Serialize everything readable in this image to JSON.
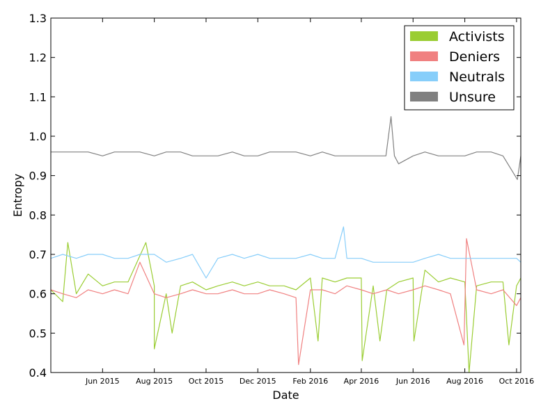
{
  "chart_data": {
    "type": "line",
    "xlabel": "Date",
    "ylabel": "Entropy",
    "x_range": [
      "2015-04-01",
      "2016-10-06"
    ],
    "ylim": [
      0.4,
      1.3
    ],
    "yticks": [
      "0.4",
      "0.5",
      "0.6",
      "0.7",
      "0.8",
      "0.9",
      "1.0",
      "1.1",
      "1.2",
      "1.3"
    ],
    "xticks": [
      {
        "date": "2015-06-01",
        "label": "Jun 2015"
      },
      {
        "date": "2015-08-01",
        "label": "Aug 2015"
      },
      {
        "date": "2015-10-01",
        "label": "Oct 2015"
      },
      {
        "date": "2015-12-01",
        "label": "Dec 2015"
      },
      {
        "date": "2016-02-01",
        "label": "Feb 2016"
      },
      {
        "date": "2016-04-01",
        "label": "Apr 2016"
      },
      {
        "date": "2016-06-01",
        "label": "Jun 2016"
      },
      {
        "date": "2016-08-01",
        "label": "Aug 2016"
      },
      {
        "date": "2016-10-01",
        "label": "Oct 2016"
      }
    ],
    "grid": false,
    "legend_position": "top-right",
    "series": [
      {
        "name": "Activists",
        "color": "#9acd32",
        "points": [
          [
            "2015-04-01",
            0.61
          ],
          [
            "2015-04-15",
            0.58
          ],
          [
            "2015-04-21",
            0.73
          ],
          [
            "2015-05-01",
            0.6
          ],
          [
            "2015-05-15",
            0.65
          ],
          [
            "2015-06-01",
            0.62
          ],
          [
            "2015-06-15",
            0.63
          ],
          [
            "2015-07-01",
            0.63
          ],
          [
            "2015-07-22",
            0.73
          ],
          [
            "2015-08-01",
            0.62
          ],
          [
            "2015-08-01",
            0.46
          ],
          [
            "2015-08-15",
            0.6
          ],
          [
            "2015-08-22",
            0.5
          ],
          [
            "2015-09-01",
            0.62
          ],
          [
            "2015-09-15",
            0.63
          ],
          [
            "2015-10-01",
            0.61
          ],
          [
            "2015-10-15",
            0.62
          ],
          [
            "2015-11-01",
            0.63
          ],
          [
            "2015-11-15",
            0.62
          ],
          [
            "2015-12-01",
            0.63
          ],
          [
            "2015-12-15",
            0.62
          ],
          [
            "2016-01-01",
            0.62
          ],
          [
            "2016-01-15",
            0.61
          ],
          [
            "2016-02-01",
            0.64
          ],
          [
            "2016-02-10",
            0.48
          ],
          [
            "2016-02-15",
            0.64
          ],
          [
            "2016-03-01",
            0.63
          ],
          [
            "2016-03-15",
            0.64
          ],
          [
            "2016-04-01",
            0.64
          ],
          [
            "2016-04-02",
            0.43
          ],
          [
            "2016-04-15",
            0.62
          ],
          [
            "2016-04-23",
            0.48
          ],
          [
            "2016-05-01",
            0.61
          ],
          [
            "2016-05-15",
            0.63
          ],
          [
            "2016-06-01",
            0.64
          ],
          [
            "2016-06-02",
            0.48
          ],
          [
            "2016-06-15",
            0.66
          ],
          [
            "2016-07-01",
            0.63
          ],
          [
            "2016-07-15",
            0.64
          ],
          [
            "2016-08-01",
            0.63
          ],
          [
            "2016-08-06",
            0.4
          ],
          [
            "2016-08-15",
            0.62
          ],
          [
            "2016-09-01",
            0.63
          ],
          [
            "2016-09-15",
            0.63
          ],
          [
            "2016-09-22",
            0.47
          ],
          [
            "2016-10-01",
            0.62
          ],
          [
            "2016-10-06",
            0.64
          ]
        ]
      },
      {
        "name": "Deniers",
        "color": "#f08080",
        "points": [
          [
            "2015-04-01",
            0.61
          ],
          [
            "2015-04-15",
            0.6
          ],
          [
            "2015-05-01",
            0.59
          ],
          [
            "2015-05-15",
            0.61
          ],
          [
            "2015-06-01",
            0.6
          ],
          [
            "2015-06-15",
            0.61
          ],
          [
            "2015-07-01",
            0.6
          ],
          [
            "2015-07-15",
            0.68
          ],
          [
            "2015-08-01",
            0.6
          ],
          [
            "2015-08-15",
            0.59
          ],
          [
            "2015-09-01",
            0.6
          ],
          [
            "2015-09-15",
            0.61
          ],
          [
            "2015-10-01",
            0.6
          ],
          [
            "2015-10-15",
            0.6
          ],
          [
            "2015-11-01",
            0.61
          ],
          [
            "2015-11-15",
            0.6
          ],
          [
            "2015-12-01",
            0.6
          ],
          [
            "2015-12-15",
            0.61
          ],
          [
            "2016-01-01",
            0.6
          ],
          [
            "2016-01-15",
            0.59
          ],
          [
            "2016-01-18",
            0.42
          ],
          [
            "2016-02-01",
            0.61
          ],
          [
            "2016-02-15",
            0.61
          ],
          [
            "2016-03-01",
            0.6
          ],
          [
            "2016-03-15",
            0.62
          ],
          [
            "2016-04-01",
            0.61
          ],
          [
            "2016-04-15",
            0.6
          ],
          [
            "2016-05-01",
            0.61
          ],
          [
            "2016-05-15",
            0.6
          ],
          [
            "2016-06-01",
            0.61
          ],
          [
            "2016-06-15",
            0.62
          ],
          [
            "2016-07-01",
            0.61
          ],
          [
            "2016-07-15",
            0.6
          ],
          [
            "2016-07-31",
            0.47
          ],
          [
            "2016-08-03",
            0.74
          ],
          [
            "2016-08-15",
            0.61
          ],
          [
            "2016-09-01",
            0.6
          ],
          [
            "2016-09-15",
            0.61
          ],
          [
            "2016-10-01",
            0.57
          ],
          [
            "2016-10-06",
            0.59
          ]
        ]
      },
      {
        "name": "Neutrals",
        "color": "#87cefa",
        "points": [
          [
            "2015-04-01",
            0.69
          ],
          [
            "2015-04-15",
            0.7
          ],
          [
            "2015-05-01",
            0.69
          ],
          [
            "2015-05-15",
            0.7
          ],
          [
            "2015-06-01",
            0.7
          ],
          [
            "2015-06-15",
            0.69
          ],
          [
            "2015-07-01",
            0.69
          ],
          [
            "2015-07-15",
            0.7
          ],
          [
            "2015-08-01",
            0.7
          ],
          [
            "2015-08-15",
            0.68
          ],
          [
            "2015-09-01",
            0.69
          ],
          [
            "2015-09-15",
            0.7
          ],
          [
            "2015-10-01",
            0.64
          ],
          [
            "2015-10-15",
            0.69
          ],
          [
            "2015-11-01",
            0.7
          ],
          [
            "2015-11-15",
            0.69
          ],
          [
            "2015-12-01",
            0.7
          ],
          [
            "2015-12-15",
            0.69
          ],
          [
            "2016-01-01",
            0.69
          ],
          [
            "2016-01-15",
            0.69
          ],
          [
            "2016-02-01",
            0.7
          ],
          [
            "2016-02-15",
            0.69
          ],
          [
            "2016-03-01",
            0.69
          ],
          [
            "2016-03-11",
            0.77
          ],
          [
            "2016-03-15",
            0.69
          ],
          [
            "2016-04-01",
            0.69
          ],
          [
            "2016-04-15",
            0.68
          ],
          [
            "2016-05-01",
            0.68
          ],
          [
            "2016-05-15",
            0.68
          ],
          [
            "2016-06-01",
            0.68
          ],
          [
            "2016-06-15",
            0.69
          ],
          [
            "2016-07-01",
            0.7
          ],
          [
            "2016-07-15",
            0.69
          ],
          [
            "2016-08-01",
            0.69
          ],
          [
            "2016-08-15",
            0.69
          ],
          [
            "2016-09-01",
            0.69
          ],
          [
            "2016-09-15",
            0.69
          ],
          [
            "2016-10-01",
            0.69
          ],
          [
            "2016-10-06",
            0.68
          ]
        ]
      },
      {
        "name": "Unsure",
        "color": "#808080",
        "points": [
          [
            "2015-04-01",
            0.96
          ],
          [
            "2015-04-15",
            0.96
          ],
          [
            "2015-05-01",
            0.96
          ],
          [
            "2015-05-15",
            0.96
          ],
          [
            "2015-06-01",
            0.95
          ],
          [
            "2015-06-15",
            0.96
          ],
          [
            "2015-07-01",
            0.96
          ],
          [
            "2015-07-15",
            0.96
          ],
          [
            "2015-08-01",
            0.95
          ],
          [
            "2015-08-15",
            0.96
          ],
          [
            "2015-09-01",
            0.96
          ],
          [
            "2015-09-15",
            0.95
          ],
          [
            "2015-10-01",
            0.95
          ],
          [
            "2015-10-15",
            0.95
          ],
          [
            "2015-11-01",
            0.96
          ],
          [
            "2015-11-15",
            0.95
          ],
          [
            "2015-12-01",
            0.95
          ],
          [
            "2015-12-15",
            0.96
          ],
          [
            "2016-01-01",
            0.96
          ],
          [
            "2016-01-15",
            0.96
          ],
          [
            "2016-02-01",
            0.95
          ],
          [
            "2016-02-15",
            0.96
          ],
          [
            "2016-03-01",
            0.95
          ],
          [
            "2016-03-15",
            0.95
          ],
          [
            "2016-04-01",
            0.95
          ],
          [
            "2016-04-15",
            0.95
          ],
          [
            "2016-04-30",
            0.95
          ],
          [
            "2016-05-06",
            1.05
          ],
          [
            "2016-05-10",
            0.95
          ],
          [
            "2016-05-15",
            0.93
          ],
          [
            "2016-06-01",
            0.95
          ],
          [
            "2016-06-15",
            0.96
          ],
          [
            "2016-07-01",
            0.95
          ],
          [
            "2016-07-15",
            0.95
          ],
          [
            "2016-08-01",
            0.95
          ],
          [
            "2016-08-15",
            0.96
          ],
          [
            "2016-09-01",
            0.96
          ],
          [
            "2016-09-15",
            0.95
          ],
          [
            "2016-10-02",
            0.89
          ],
          [
            "2016-10-06",
            0.95
          ]
        ]
      }
    ]
  }
}
